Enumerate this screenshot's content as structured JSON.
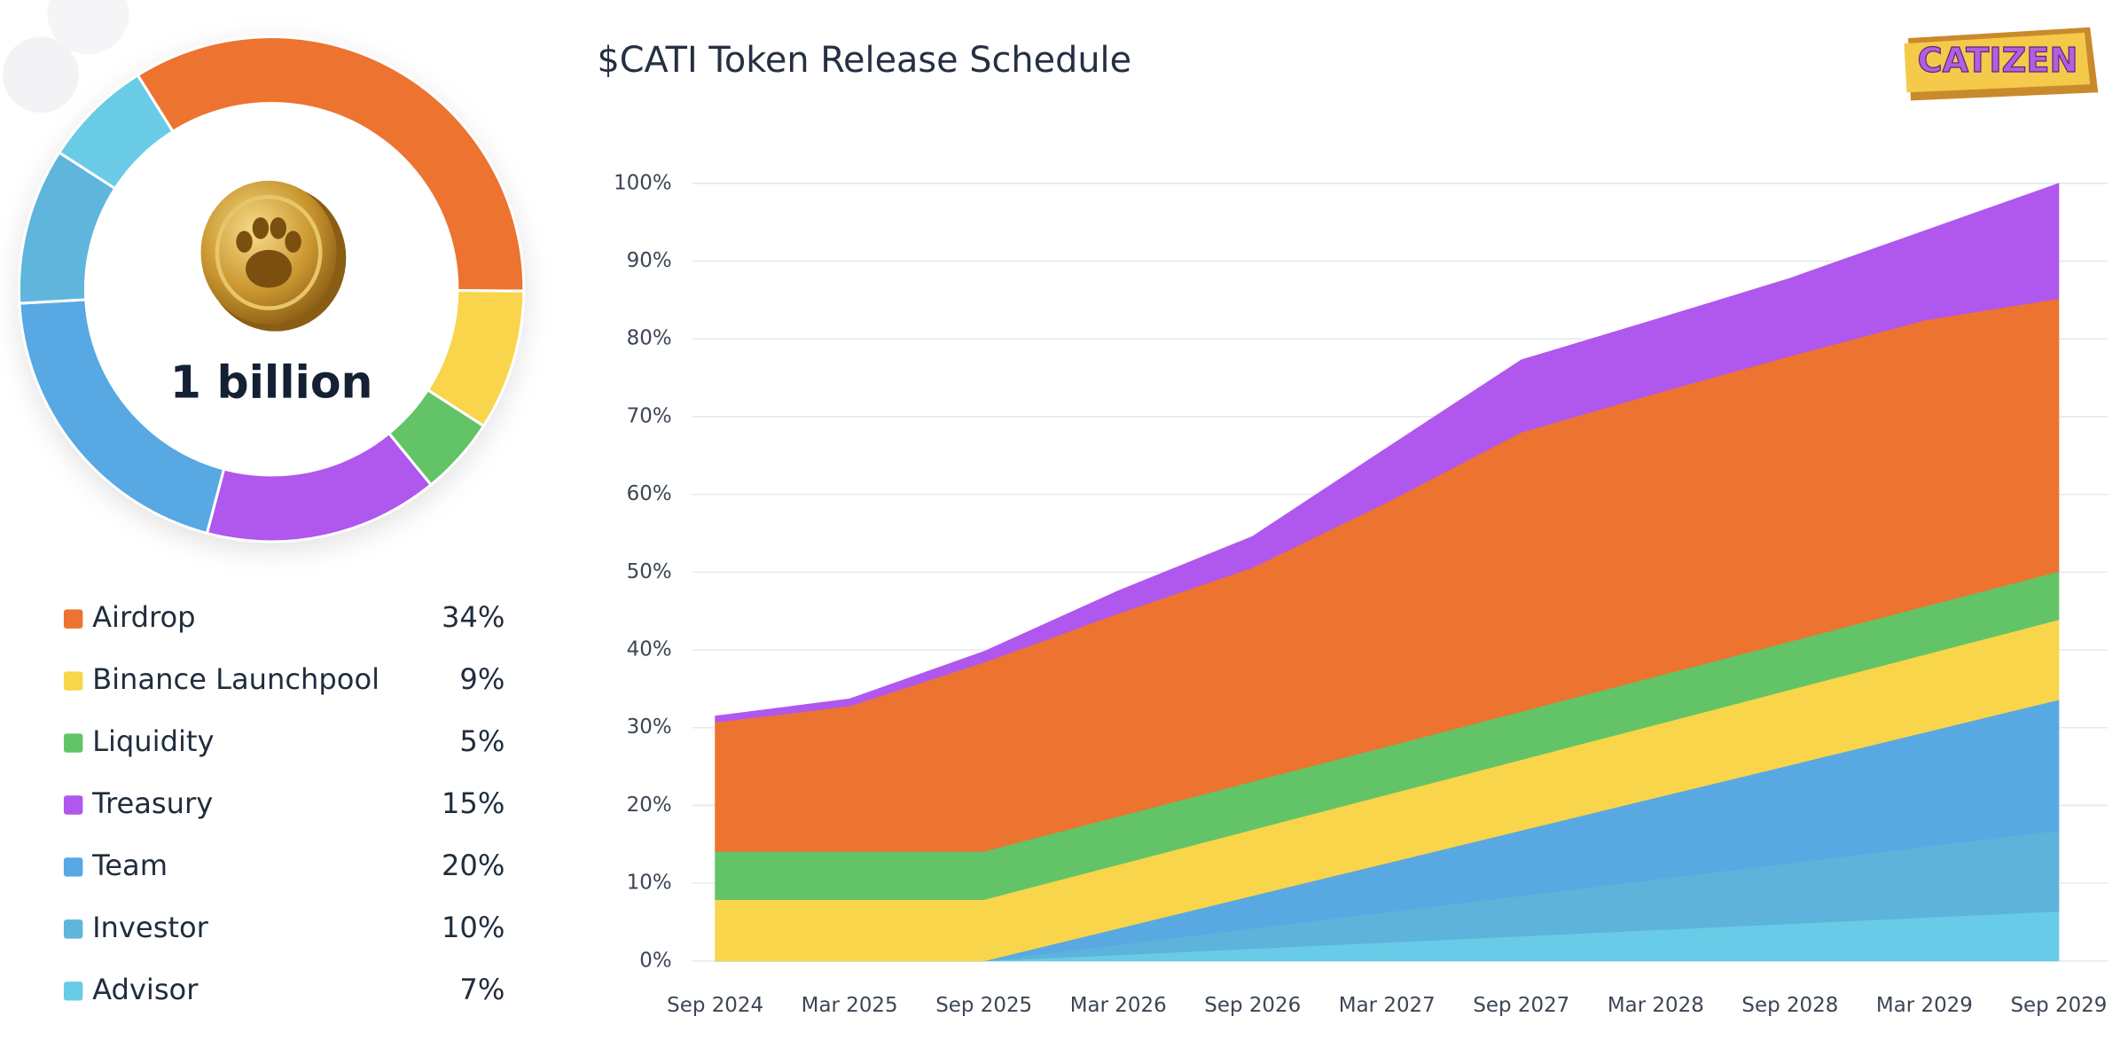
{
  "logo": "CATIZEN",
  "chart_data": [
    {
      "type": "pie",
      "center_label": "1 billion",
      "categories": [
        "Airdrop",
        "Binance Launchpool",
        "Liquidity",
        "Treasury",
        "Team",
        "Investor",
        "Advisor"
      ],
      "values": [
        34,
        9,
        5,
        15,
        20,
        10,
        7
      ],
      "value_labels": [
        "34%",
        "9%",
        "5%",
        "15%",
        "20%",
        "10%",
        "7%"
      ],
      "colors": [
        "#ed7330",
        "#f8d54a",
        "#62c466",
        "#b057ee",
        "#57a8e3",
        "#5fb5dc",
        "#6acbe6"
      ]
    },
    {
      "type": "area",
      "stacked": true,
      "title": "$CATI Token Release Schedule",
      "x": [
        "Sep 2024",
        "Mar 2025",
        "Sep 2025",
        "Mar 2026",
        "Sep 2026",
        "Mar 2027",
        "Sep 2027",
        "Mar 2028",
        "Sep 2028",
        "Mar 2029",
        "Sep 2029"
      ],
      "series": [
        {
          "name": "Advisor",
          "color": "#68cbe7",
          "values": [
            0,
            0,
            0,
            0.8,
            1.6,
            2.4,
            3.2,
            4.0,
            4.8,
            5.6,
            6.4
          ]
        },
        {
          "name": "Investor",
          "color": "#5db3da",
          "values": [
            0,
            0,
            0,
            1.3,
            2.6,
            3.9,
            5.2,
            6.5,
            7.8,
            9.1,
            10.4
          ]
        },
        {
          "name": "Team",
          "color": "#58a9e2",
          "values": [
            0,
            0,
            0,
            2.1,
            4.2,
            6.3,
            8.4,
            10.5,
            12.6,
            14.7,
            16.8
          ]
        },
        {
          "name": "Binance Launchpool",
          "color": "#f8d54a",
          "values": [
            7.9,
            7.9,
            7.9,
            8.2,
            8.5,
            8.8,
            9.1,
            9.4,
            9.7,
            10.0,
            10.3
          ]
        },
        {
          "name": "Liquidity",
          "color": "#62c466",
          "values": [
            6.2,
            6.2,
            6.2,
            6.2,
            6.2,
            6.2,
            6.2,
            6.2,
            6.2,
            6.2,
            6.2
          ]
        },
        {
          "name": "Airdrop",
          "color": "#ed7330",
          "values": [
            16.6,
            18.7,
            24.3,
            26.1,
            27.5,
            31.4,
            35.9,
            36.4,
            36.7,
            36.8,
            35.1
          ]
        },
        {
          "name": "Treasury",
          "color": "#b057ee",
          "values": [
            0.8,
            0.9,
            1.4,
            2.9,
            4.0,
            7.0,
            9.3,
            9.5,
            10.0,
            11.5,
            14.8
          ]
        }
      ],
      "ylim": [
        0,
        100
      ],
      "yticks": [
        {
          "value": 0,
          "label": "0%"
        },
        {
          "value": 10,
          "label": "10%"
        },
        {
          "value": 20,
          "label": "20%"
        },
        {
          "value": 30,
          "label": "30%"
        },
        {
          "value": 40,
          "label": "40%"
        },
        {
          "value": 50,
          "label": "50%"
        },
        {
          "value": 60,
          "label": "60%"
        },
        {
          "value": 70,
          "label": "70%"
        },
        {
          "value": 80,
          "label": "80%"
        },
        {
          "value": 90,
          "label": "90%"
        },
        {
          "value": 100,
          "label": "100%"
        }
      ],
      "grid": true
    }
  ]
}
